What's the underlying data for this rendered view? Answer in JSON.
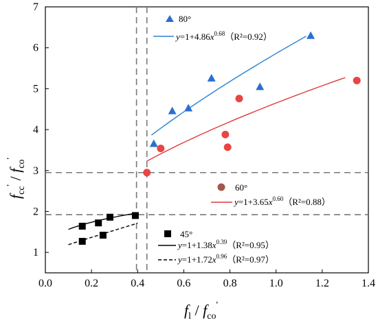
{
  "chart_data": {
    "type": "scatter",
    "xlabel": "fl / f'co",
    "ylabel": "f'cc / f'co",
    "xlim": [
      0.0,
      1.4
    ],
    "ylim": [
      0.5,
      7.0
    ],
    "xticks": [
      0.0,
      0.2,
      0.4,
      0.6,
      0.8,
      1.0,
      1.2,
      1.4
    ],
    "yticks": [
      1,
      2,
      3,
      4,
      5,
      6,
      7
    ],
    "grid": false,
    "reference_lines": {
      "vertical_x": [
        0.395,
        0.44
      ],
      "horizontal_y": [
        1.92,
        2.95
      ]
    },
    "series": [
      {
        "name": "80°",
        "color": "#2a6fd0",
        "marker": "triangle",
        "points": [
          [
            0.47,
            3.66
          ],
          [
            0.55,
            4.46
          ],
          [
            0.62,
            4.53
          ],
          [
            0.72,
            5.26
          ],
          [
            0.93,
            5.05
          ],
          [
            1.15,
            6.3
          ]
        ],
        "fit": {
          "a": 4.86,
          "b": 0.68,
          "r2": "0.92",
          "x_range": [
            0.46,
            1.13
          ],
          "color": "#2a82d2",
          "dash": "solid"
        }
      },
      {
        "name": "60°",
        "color": "#e84545",
        "marker": "circle",
        "points": [
          [
            0.44,
            2.95
          ],
          [
            0.5,
            3.54
          ],
          [
            0.78,
            3.88
          ],
          [
            0.79,
            3.57
          ],
          [
            0.84,
            4.76
          ],
          [
            1.35,
            5.2
          ]
        ],
        "fit": {
          "a": 3.65,
          "b": 0.6,
          "r2": "0.88",
          "x_range": [
            0.44,
            1.3
          ],
          "color": "#e0393e",
          "dash": "solid"
        }
      },
      {
        "name": "45°",
        "color": "#000000",
        "marker": "square",
        "points": [
          [
            0.16,
            1.64
          ],
          [
            0.16,
            1.27
          ],
          [
            0.23,
            1.72
          ],
          [
            0.25,
            1.42
          ],
          [
            0.28,
            1.86
          ],
          [
            0.39,
            1.9
          ]
        ],
        "fit": [
          {
            "a": 1.38,
            "b": 0.39,
            "r2": "0.95",
            "x_range": [
              0.1,
              0.4
            ],
            "color": "#000000",
            "dash": "solid"
          },
          {
            "a": 1.72,
            "b": 0.96,
            "r2": "0.97",
            "x_range": [
              0.1,
              0.4
            ],
            "color": "#000000",
            "dash": "dashed"
          }
        ]
      }
    ]
  },
  "legend": {
    "s80": {
      "name": "80°",
      "eq_pre": "=1+4.86",
      "var_y": "y",
      "var_x": "x",
      "exp": "0.68",
      "r2": "（R²=0.92）"
    },
    "s60": {
      "name": "60°",
      "eq_pre": "=1+3.65",
      "var_y": "y",
      "var_x": "x",
      "exp": "0.60",
      "r2": "（R²=0.88）"
    },
    "s45": {
      "name": "45°",
      "eq1_pre": "=1+1.38",
      "eq1_exp": "0.39",
      "eq1_r2": "（R²=0.95）",
      "eq2_pre": "=1+1.72",
      "eq2_exp": "0.96",
      "eq2_r2": "（R²=0.97）",
      "var_y": "y",
      "var_x": "x"
    }
  },
  "axis_titles": {
    "x_main": "f",
    "x_sub": "l",
    "x_slash": " / ",
    "x_den": "f",
    "x_den_sub": "co",
    "x_den_sup": "'",
    "y_main": "f",
    "y_sub": "cc",
    "y_sup": "'",
    "y_slash": " / ",
    "y_den": "f",
    "y_den_sub": "co",
    "y_den_sup": "'"
  }
}
